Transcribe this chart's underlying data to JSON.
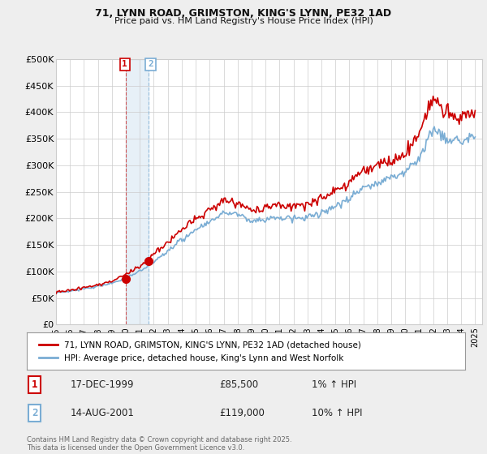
{
  "title_line1": "71, LYNN ROAD, GRIMSTON, KING'S LYNN, PE32 1AD",
  "title_line2": "Price paid vs. HM Land Registry's House Price Index (HPI)",
  "ylim": [
    0,
    500000
  ],
  "yticks": [
    0,
    50000,
    100000,
    150000,
    200000,
    250000,
    300000,
    350000,
    400000,
    450000,
    500000
  ],
  "ytick_labels": [
    "£0",
    "£50K",
    "£100K",
    "£150K",
    "£200K",
    "£250K",
    "£300K",
    "£350K",
    "£400K",
    "£450K",
    "£500K"
  ],
  "property_color": "#cc0000",
  "hpi_color": "#7aadd4",
  "legend_property": "71, LYNN ROAD, GRIMSTON, KING'S LYNN, PE32 1AD (detached house)",
  "legend_hpi": "HPI: Average price, detached house, King's Lynn and West Norfolk",
  "transaction1_date": "17-DEC-1999",
  "transaction1_price": "£85,500",
  "transaction1_hpi": "1% ↑ HPI",
  "transaction2_date": "14-AUG-2001",
  "transaction2_price": "£119,000",
  "transaction2_hpi": "10% ↑ HPI",
  "footnote": "Contains HM Land Registry data © Crown copyright and database right 2025.\nThis data is licensed under the Open Government Licence v3.0.",
  "vline1_x": 2000.0,
  "vline2_x": 2001.62,
  "marker1_x": 2000.0,
  "marker1_y": 85500,
  "marker2_x": 2001.62,
  "marker2_y": 119000,
  "xmin": 1995.0,
  "xmax": 2025.5,
  "background_color": "#eeeeee",
  "plot_bg_color": "#ffffff",
  "label1_color": "#cc0000",
  "label2_color": "#7aadd4"
}
